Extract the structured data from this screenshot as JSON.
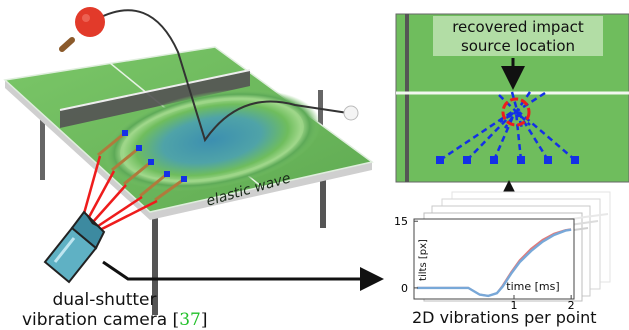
{
  "colors": {
    "table_green": "#6fbd5d",
    "table_green_dark": "#4f9b44",
    "wave_blue": "#3c8fb0",
    "wave_teal": "#5db7a4",
    "laser_red": "#ee1c1c",
    "point_blue": "#1430e6",
    "stick_brown": "#b07a3c",
    "paddle_red": "#e23a2a",
    "camera_teal": "#5fb1c4",
    "curve_blue": "#78a8d8",
    "curve_red": "#e07a7a",
    "citation_green": "#22c02a",
    "arrow_black": "#111111"
  },
  "icons": {
    "paddle": "ping-pong-paddle-icon",
    "ball": "ping-pong-ball-icon",
    "camera": "vibration-camera-icon"
  },
  "table": {
    "wave_label": "elastic wave"
  },
  "camera": {
    "caption_line1": "dual-shutter",
    "caption_line2": "vibration camera",
    "citation_open": "[",
    "citation_num": "37",
    "citation_close": "]"
  },
  "inset": {
    "label_line1": "recovered impact",
    "label_line2": "source location"
  },
  "plot": {
    "y_axis_label": "tilts [px]",
    "x_axis_label": "time [ms]",
    "y_ticks": [
      "15",
      "0"
    ],
    "x_ticks": [
      "1",
      "2"
    ],
    "caption": "2D vibrations per point"
  },
  "chart_data": {
    "type": "line",
    "xlabel": "time [ms]",
    "ylabel": "tilts [px]",
    "xlim": [
      -0.75,
      2.05
    ],
    "ylim": [
      -2.5,
      15.5
    ],
    "xticks": [
      1,
      2
    ],
    "yticks": [
      0,
      15
    ],
    "x": [
      -0.7,
      -0.4,
      -0.1,
      0.2,
      0.4,
      0.55,
      0.7,
      0.8,
      0.95,
      1.1,
      1.3,
      1.5,
      1.7,
      1.9,
      2.0
    ],
    "series": [
      {
        "values": [
          0,
          0,
          0,
          0,
          -1.5,
          -1.8,
          -1.2,
          0.5,
          3.5,
          6.2,
          8.8,
          10.8,
          12.2,
          13.0,
          13.2
        ]
      },
      {
        "values": [
          0,
          0,
          0,
          0,
          -1.5,
          -1.8,
          -1.2,
          0.3,
          3.2,
          5.8,
          8.3,
          10.4,
          11.9,
          12.9,
          13.1
        ]
      }
    ]
  }
}
